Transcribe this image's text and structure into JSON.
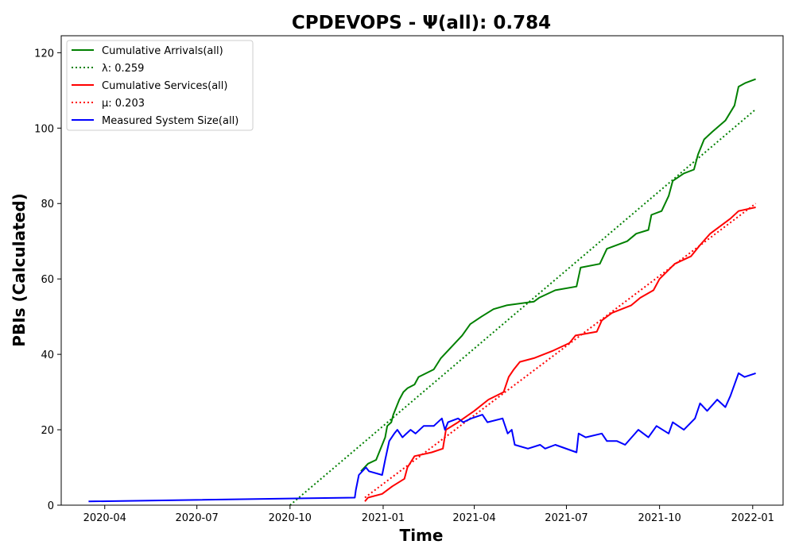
{
  "chart_data": {
    "type": "line",
    "title": "CPDEVOPS -  Ψ(all): 0.784",
    "xlabel": "Time",
    "ylabel": "PBIs (Calculated)",
    "x_range": [
      "2020-02-18",
      "2022-01-31"
    ],
    "ylim": [
      0,
      124.5
    ],
    "x_ticks": [
      {
        "date": "2020-04-01",
        "label": "2020-04"
      },
      {
        "date": "2020-07-01",
        "label": "2020-07"
      },
      {
        "date": "2020-10-01",
        "label": "2020-10"
      },
      {
        "date": "2021-01-01",
        "label": "2021-01"
      },
      {
        "date": "2021-04-01",
        "label": "2021-04"
      },
      {
        "date": "2021-07-01",
        "label": "2021-07"
      },
      {
        "date": "2021-10-01",
        "label": "2021-10"
      },
      {
        "date": "2022-01-01",
        "label": "2022-01"
      }
    ],
    "y_ticks": [
      0,
      20,
      40,
      60,
      80,
      100,
      120
    ],
    "grid": false,
    "legend_position": "top-left",
    "series": [
      {
        "name": "Cumulative Arrivals(all)",
        "color": "#008000",
        "style": "solid",
        "points": [
          [
            "2020-12-10",
            9
          ],
          [
            "2020-12-17",
            11
          ],
          [
            "2020-12-25",
            12
          ],
          [
            "2021-01-03",
            18
          ],
          [
            "2021-01-05",
            21
          ],
          [
            "2021-01-09",
            22
          ],
          [
            "2021-01-11",
            24
          ],
          [
            "2021-01-14",
            26
          ],
          [
            "2021-01-17",
            28
          ],
          [
            "2021-01-21",
            30
          ],
          [
            "2021-01-25",
            31
          ],
          [
            "2021-02-01",
            32
          ],
          [
            "2021-02-05",
            34
          ],
          [
            "2021-02-20",
            36
          ],
          [
            "2021-02-27",
            39
          ],
          [
            "2021-03-06",
            41
          ],
          [
            "2021-03-13",
            43
          ],
          [
            "2021-03-20",
            45
          ],
          [
            "2021-03-28",
            48
          ],
          [
            "2021-04-08",
            50
          ],
          [
            "2021-04-20",
            52
          ],
          [
            "2021-05-03",
            53
          ],
          [
            "2021-05-30",
            54
          ],
          [
            "2021-06-04",
            55
          ],
          [
            "2021-06-20",
            57
          ],
          [
            "2021-07-11",
            58
          ],
          [
            "2021-07-15",
            63
          ],
          [
            "2021-08-03",
            64
          ],
          [
            "2021-08-10",
            68
          ],
          [
            "2021-08-30",
            70
          ],
          [
            "2021-09-08",
            72
          ],
          [
            "2021-09-20",
            73
          ],
          [
            "2021-09-23",
            77
          ],
          [
            "2021-10-03",
            78
          ],
          [
            "2021-10-10",
            82
          ],
          [
            "2021-10-14",
            86
          ],
          [
            "2021-10-25",
            88
          ],
          [
            "2021-11-04",
            89
          ],
          [
            "2021-11-08",
            93
          ],
          [
            "2021-11-14",
            97
          ],
          [
            "2021-11-22",
            99
          ],
          [
            "2021-12-05",
            102
          ],
          [
            "2021-12-14",
            106
          ],
          [
            "2021-12-18",
            111
          ],
          [
            "2021-12-25",
            112
          ],
          [
            "2022-01-04",
            113
          ]
        ]
      },
      {
        "name": "λ: 0.259",
        "color": "#008000",
        "style": "dotted",
        "points": [
          [
            "2020-10-01",
            0
          ],
          [
            "2022-01-04",
            105
          ]
        ]
      },
      {
        "name": "Cumulative Services(all)",
        "color": "#ff0000",
        "style": "solid",
        "points": [
          [
            "2020-12-14",
            1
          ],
          [
            "2020-12-17",
            2
          ],
          [
            "2020-12-31",
            3
          ],
          [
            "2021-01-10",
            5
          ],
          [
            "2021-01-22",
            7
          ],
          [
            "2021-01-25",
            10
          ],
          [
            "2021-02-01",
            13
          ],
          [
            "2021-02-18",
            14
          ],
          [
            "2021-03-01",
            15
          ],
          [
            "2021-03-04",
            20
          ],
          [
            "2021-03-16",
            22
          ],
          [
            "2021-04-01",
            25
          ],
          [
            "2021-04-15",
            28
          ],
          [
            "2021-04-30",
            30
          ],
          [
            "2021-05-05",
            34
          ],
          [
            "2021-05-10",
            36
          ],
          [
            "2021-05-16",
            38
          ],
          [
            "2021-05-30",
            39
          ],
          [
            "2021-06-18",
            41
          ],
          [
            "2021-07-04",
            43
          ],
          [
            "2021-07-10",
            45
          ],
          [
            "2021-07-31",
            46
          ],
          [
            "2021-08-05",
            49
          ],
          [
            "2021-08-15",
            51
          ],
          [
            "2021-09-03",
            53
          ],
          [
            "2021-09-12",
            55
          ],
          [
            "2021-09-25",
            57
          ],
          [
            "2021-10-01",
            60
          ],
          [
            "2021-10-16",
            64
          ],
          [
            "2021-11-01",
            66
          ],
          [
            "2021-11-10",
            69
          ],
          [
            "2021-11-20",
            72
          ],
          [
            "2021-12-10",
            76
          ],
          [
            "2021-12-18",
            78
          ],
          [
            "2022-01-04",
            79
          ]
        ]
      },
      {
        "name": "μ: 0.203",
        "color": "#ff0000",
        "style": "dotted",
        "points": [
          [
            "2020-12-14",
            2
          ],
          [
            "2022-01-04",
            80
          ]
        ]
      },
      {
        "name": "Measured System Size(all)",
        "color": "#0000ff",
        "style": "solid",
        "points": [
          [
            "2020-03-16",
            1
          ],
          [
            "2020-12-04",
            2
          ],
          [
            "2020-12-05",
            4
          ],
          [
            "2020-12-08",
            8
          ],
          [
            "2020-12-15",
            10
          ],
          [
            "2020-12-18",
            9
          ],
          [
            "2020-12-31",
            8
          ],
          [
            "2021-01-03",
            12
          ],
          [
            "2021-01-07",
            17
          ],
          [
            "2021-01-12",
            19
          ],
          [
            "2021-01-15",
            20
          ],
          [
            "2021-01-20",
            18
          ],
          [
            "2021-01-28",
            20
          ],
          [
            "2021-02-02",
            19
          ],
          [
            "2021-02-10",
            21
          ],
          [
            "2021-02-20",
            21
          ],
          [
            "2021-02-28",
            23
          ],
          [
            "2021-03-03",
            20
          ],
          [
            "2021-03-06",
            22
          ],
          [
            "2021-03-16",
            23
          ],
          [
            "2021-03-21",
            22
          ],
          [
            "2021-03-29",
            23
          ],
          [
            "2021-04-09",
            24
          ],
          [
            "2021-04-14",
            22
          ],
          [
            "2021-04-29",
            23
          ],
          [
            "2021-05-04",
            19
          ],
          [
            "2021-05-08",
            20
          ],
          [
            "2021-05-11",
            16
          ],
          [
            "2021-05-24",
            15
          ],
          [
            "2021-06-05",
            16
          ],
          [
            "2021-06-10",
            15
          ],
          [
            "2021-06-20",
            16
          ],
          [
            "2021-07-11",
            14
          ],
          [
            "2021-07-13",
            19
          ],
          [
            "2021-07-20",
            18
          ],
          [
            "2021-08-05",
            19
          ],
          [
            "2021-08-10",
            17
          ],
          [
            "2021-08-20",
            17
          ],
          [
            "2021-08-28",
            16
          ],
          [
            "2021-09-10",
            20
          ],
          [
            "2021-09-20",
            18
          ],
          [
            "2021-09-28",
            21
          ],
          [
            "2021-10-10",
            19
          ],
          [
            "2021-10-14",
            22
          ],
          [
            "2021-10-25",
            20
          ],
          [
            "2021-11-05",
            23
          ],
          [
            "2021-11-10",
            27
          ],
          [
            "2021-11-17",
            25
          ],
          [
            "2021-11-27",
            28
          ],
          [
            "2021-12-05",
            26
          ],
          [
            "2021-12-10",
            29
          ],
          [
            "2021-12-18",
            35
          ],
          [
            "2021-12-24",
            34
          ],
          [
            "2022-01-04",
            35
          ]
        ]
      }
    ]
  }
}
